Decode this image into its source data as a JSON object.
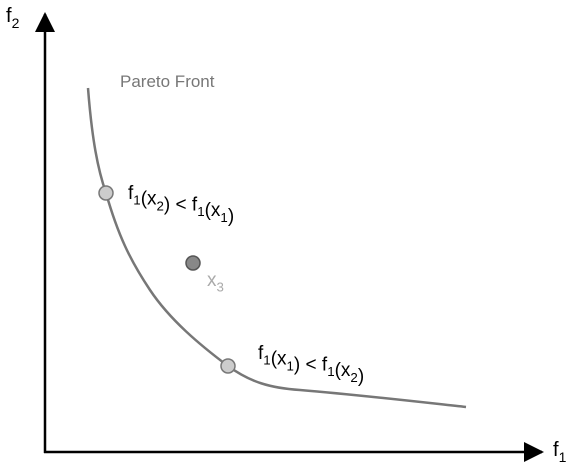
{
  "axes": {
    "x": {
      "t": "f",
      "sub": "1"
    },
    "y": {
      "t": "f",
      "sub": "2"
    }
  },
  "curve_label": "Pareto Front",
  "annotations": [
    [
      {
        "t": "f",
        "sub": "1"
      },
      {
        "t": "(x",
        "sub": "2"
      },
      {
        "t": ") < f",
        "sub": "1"
      },
      {
        "t": "(x",
        "sub": "1"
      },
      {
        "t": ")"
      }
    ],
    [
      {
        "t": "f",
        "sub": "1"
      },
      {
        "t": "(x",
        "sub": "1"
      },
      {
        "t": ") < f",
        "sub": "1"
      },
      {
        "t": "(x",
        "sub": "2"
      },
      {
        "t": ")"
      }
    ]
  ],
  "point_label": {
    "t": "x",
    "sub": "3"
  }
}
